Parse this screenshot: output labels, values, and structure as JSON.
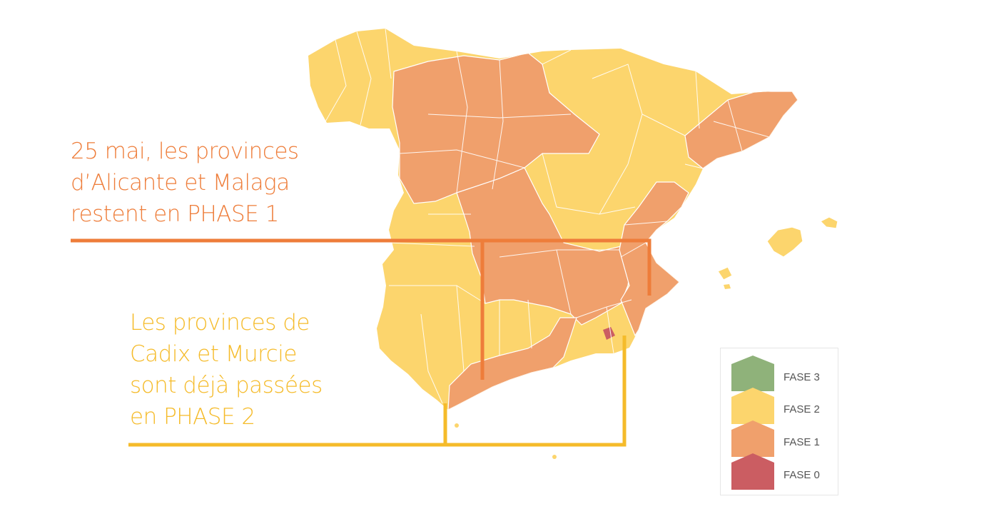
{
  "callouts": {
    "phase1": {
      "lines": [
        "25 mai, les provinces",
        "d’Alicante et Malaga",
        "restent en PHASE 1"
      ],
      "color": "#ee7d3a"
    },
    "phase2": {
      "lines": [
        "Les provinces de",
        "Cadix et Murcie",
        "sont déjà passées",
        "en PHASE 2"
      ],
      "color": "#f5bb2a"
    }
  },
  "legend": {
    "items": [
      {
        "label": "FASE 3",
        "color": "#8fb27a"
      },
      {
        "label": "FASE 2",
        "color": "#fcd56d"
      },
      {
        "label": "FASE 1",
        "color": "#f0a06c"
      },
      {
        "label": "FASE 0",
        "color": "#cb5d62"
      }
    ]
  },
  "map": {
    "phase2_color": "#fcd56d",
    "phase1_color": "#f0a06c",
    "phase0_color": "#cb5d62",
    "border_color": "#ffffff"
  }
}
